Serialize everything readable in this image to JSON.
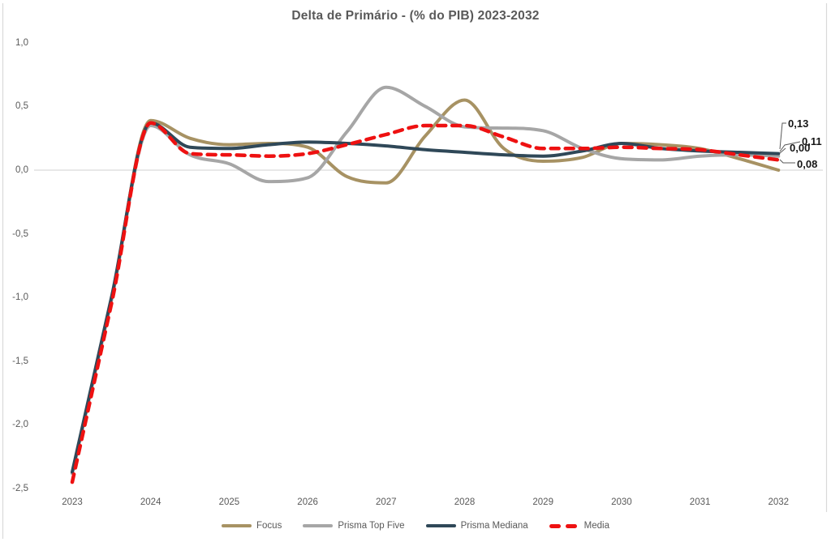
{
  "title": "Delta de Primário - (% do PIB) 2023-2032",
  "colors": {
    "title_text": "#595959",
    "axis_text": "#595959",
    "grid_line": "#d9d9d9",
    "plot_border": "#d9d9d9",
    "data_label_text": "#161616",
    "focus": "#a79263",
    "prisma_top_five": "#a6a6a6",
    "prisma_mediana": "#2f4858",
    "media": "#ee1111"
  },
  "chart_data": {
    "type": "line",
    "title": "Delta de Primário - (% do PIB) 2023-2032",
    "xlabel": "",
    "ylabel": "",
    "x_tick_labels": [
      "2023",
      "2024",
      "2025",
      "2026",
      "2027",
      "2028",
      "2029",
      "2030",
      "2031",
      "2032"
    ],
    "x_tick_values": [
      2023,
      2024,
      2025,
      2026,
      2027,
      2028,
      2029,
      2030,
      2031,
      2032
    ],
    "y_tick_labels": [
      "1,0",
      "0,5",
      "0,0",
      "-0,5",
      "-1,0",
      "-1,5",
      "-2,0",
      "-2,5"
    ],
    "y_tick_values": [
      1.0,
      0.5,
      0.0,
      -0.5,
      -1.0,
      -1.5,
      -2.0,
      -2.5
    ],
    "xlim": [
      2023,
      2032
    ],
    "ylim": [
      -2.6,
      1.05
    ],
    "grid": "zero-line-only",
    "legend_position": "bottom-center",
    "x_samples": [
      2023,
      2023.5,
      2024,
      2024.5,
      2025,
      2025.5,
      2026,
      2026.5,
      2027,
      2027.5,
      2028,
      2028.5,
      2029,
      2029.5,
      2030,
      2030.5,
      2031,
      2031.5,
      2032
    ],
    "series": [
      {
        "name": "Focus",
        "color": "#a79263",
        "style": "solid",
        "end_label": "0,00",
        "end_value": 0.0,
        "values": [
          -2.38,
          -1.02,
          0.39,
          0.25,
          0.2,
          0.21,
          0.18,
          -0.05,
          -0.1,
          0.27,
          0.55,
          0.17,
          0.07,
          0.1,
          0.21,
          0.2,
          0.17,
          0.09,
          0.0
        ]
      },
      {
        "name": "Prisma Top Five",
        "color": "#a6a6a6",
        "style": "solid",
        "end_label": "0,11",
        "end_value": 0.11,
        "values": [
          -2.38,
          -1.02,
          0.35,
          0.12,
          0.05,
          -0.09,
          -0.06,
          0.3,
          0.65,
          0.5,
          0.34,
          0.33,
          0.31,
          0.17,
          0.09,
          0.08,
          0.11,
          0.12,
          0.11
        ]
      },
      {
        "name": "Prisma Mediana",
        "color": "#2f4858",
        "style": "solid",
        "end_label": "0,13",
        "end_value": 0.13,
        "values": [
          -2.37,
          -1.0,
          0.37,
          0.18,
          0.17,
          0.2,
          0.22,
          0.21,
          0.19,
          0.16,
          0.14,
          0.12,
          0.11,
          0.15,
          0.21,
          0.17,
          0.15,
          0.14,
          0.13
        ]
      },
      {
        "name": "Media",
        "color": "#ee1111",
        "style": "dashed",
        "end_label": "0,08",
        "end_value": 0.08,
        "values": [
          -2.45,
          -1.05,
          0.37,
          0.13,
          0.12,
          0.11,
          0.13,
          0.2,
          0.28,
          0.35,
          0.35,
          0.26,
          0.17,
          0.17,
          0.18,
          0.17,
          0.16,
          0.12,
          0.08
        ]
      }
    ]
  }
}
